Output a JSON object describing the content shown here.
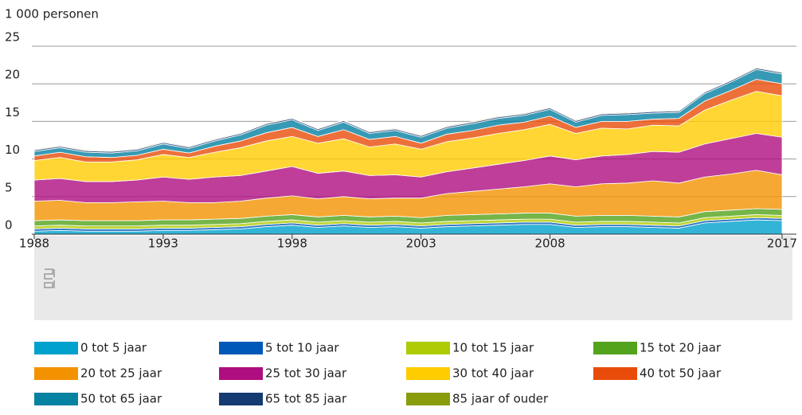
{
  "chart_data": {
    "type": "stacked_area",
    "y_label": "1 000 personen",
    "x": [
      1988,
      1989,
      1990,
      1991,
      1992,
      1993,
      1994,
      1995,
      1996,
      1997,
      1998,
      1999,
      2000,
      2001,
      2002,
      2003,
      2004,
      2005,
      2006,
      2007,
      2008,
      2009,
      2010,
      2011,
      2012,
      2013,
      2014,
      2015,
      2016,
      2017
    ],
    "xlim": [
      1988,
      2017
    ],
    "xticks": [
      1988,
      1993,
      1998,
      2003,
      2008,
      2017
    ],
    "ylim": [
      0,
      25
    ],
    "yticks": [
      0,
      5,
      10,
      15,
      20,
      25
    ],
    "grid": true,
    "series": [
      {
        "name": "0 tot 5 jaar",
        "color": "#00a1cd",
        "values": [
          0.4,
          0.5,
          0.4,
          0.4,
          0.4,
          0.5,
          0.5,
          0.6,
          0.7,
          1.0,
          1.2,
          0.9,
          1.1,
          0.9,
          1.0,
          0.8,
          1.0,
          1.1,
          1.2,
          1.3,
          1.3,
          0.9,
          1.0,
          1.0,
          0.9,
          0.8,
          1.5,
          1.7,
          1.9,
          1.8
        ]
      },
      {
        "name": "5 tot 10 jaar",
        "color": "#0058b8",
        "values": [
          0.3,
          0.3,
          0.3,
          0.3,
          0.3,
          0.3,
          0.3,
          0.3,
          0.3,
          0.3,
          0.3,
          0.3,
          0.3,
          0.3,
          0.3,
          0.3,
          0.3,
          0.3,
          0.3,
          0.3,
          0.3,
          0.3,
          0.3,
          0.3,
          0.3,
          0.3,
          0.3,
          0.3,
          0.3,
          0.3
        ]
      },
      {
        "name": "10 tot 15 jaar",
        "color": "#afcb05",
        "values": [
          0.4,
          0.4,
          0.4,
          0.4,
          0.4,
          0.4,
          0.4,
          0.4,
          0.4,
          0.4,
          0.4,
          0.4,
          0.4,
          0.4,
          0.4,
          0.4,
          0.4,
          0.4,
          0.4,
          0.4,
          0.4,
          0.4,
          0.4,
          0.4,
          0.4,
          0.4,
          0.4,
          0.4,
          0.4,
          0.4
        ]
      },
      {
        "name": "15 tot 20 jaar",
        "color": "#53a31d",
        "values": [
          0.7,
          0.7,
          0.7,
          0.7,
          0.7,
          0.7,
          0.7,
          0.7,
          0.7,
          0.7,
          0.7,
          0.7,
          0.7,
          0.7,
          0.7,
          0.7,
          0.8,
          0.8,
          0.8,
          0.8,
          0.8,
          0.8,
          0.8,
          0.8,
          0.8,
          0.8,
          0.8,
          0.8,
          0.8,
          0.8
        ]
      },
      {
        "name": "20 tot 25 jaar",
        "color": "#f39200",
        "values": [
          2.6,
          2.6,
          2.4,
          2.4,
          2.5,
          2.5,
          2.3,
          2.2,
          2.3,
          2.4,
          2.5,
          2.4,
          2.5,
          2.4,
          2.4,
          2.6,
          2.9,
          3.1,
          3.3,
          3.5,
          3.9,
          3.9,
          4.2,
          4.3,
          4.7,
          4.5,
          4.6,
          4.8,
          5.1,
          4.6
        ]
      },
      {
        "name": "25 tot 30 jaar",
        "color": "#af0e80",
        "values": [
          2.8,
          2.9,
          2.8,
          2.8,
          2.9,
          3.2,
          3.1,
          3.4,
          3.4,
          3.6,
          3.9,
          3.4,
          3.4,
          3.1,
          3.1,
          2.8,
          2.9,
          3.1,
          3.3,
          3.5,
          3.7,
          3.6,
          3.7,
          3.8,
          3.9,
          4.1,
          4.4,
          4.7,
          4.9,
          5.0
        ]
      },
      {
        "name": "30 tot 40 jaar",
        "color": "#ffcc00",
        "values": [
          2.6,
          2.8,
          2.6,
          2.6,
          2.7,
          3.0,
          2.9,
          3.3,
          3.7,
          4.0,
          4.0,
          4.0,
          4.3,
          3.8,
          4.1,
          3.7,
          4.0,
          4.0,
          4.1,
          4.1,
          4.2,
          3.5,
          3.7,
          3.4,
          3.5,
          3.5,
          4.5,
          5.1,
          5.6,
          5.5
        ]
      },
      {
        "name": "40 tot 50 jaar",
        "color": "#e94c0a",
        "values": [
          0.6,
          0.7,
          0.7,
          0.6,
          0.6,
          0.7,
          0.6,
          0.8,
          0.9,
          1.1,
          1.2,
          0.9,
          1.2,
          1.0,
          1.0,
          0.8,
          1.0,
          1.0,
          1.1,
          1.0,
          1.1,
          0.8,
          0.9,
          1.0,
          0.8,
          1.0,
          1.2,
          1.3,
          1.6,
          1.6
        ]
      },
      {
        "name": "50 tot 65 jaar",
        "color": "#0581a2",
        "values": [
          0.6,
          0.6,
          0.6,
          0.6,
          0.6,
          0.7,
          0.6,
          0.7,
          0.8,
          1.0,
          1.0,
          0.8,
          1.0,
          0.8,
          0.8,
          0.8,
          0.8,
          0.9,
          0.9,
          0.9,
          0.9,
          0.7,
          0.8,
          0.9,
          0.8,
          0.8,
          1.0,
          1.1,
          1.3,
          1.3
        ]
      },
      {
        "name": "65 tot 85 jaar",
        "color": "#163a72",
        "values": [
          0.2,
          0.2,
          0.2,
          0.2,
          0.2,
          0.2,
          0.2,
          0.2,
          0.2,
          0.2,
          0.2,
          0.2,
          0.2,
          0.2,
          0.2,
          0.2,
          0.2,
          0.2,
          0.2,
          0.2,
          0.2,
          0.2,
          0.2,
          0.2,
          0.2,
          0.2,
          0.2,
          0.2,
          0.2,
          0.2
        ]
      },
      {
        "name": "85 jaar of ouder",
        "color": "#899d0c",
        "values": [
          0.1,
          0.1,
          0.1,
          0.1,
          0.1,
          0.1,
          0.1,
          0.1,
          0.1,
          0.1,
          0.1,
          0.1,
          0.1,
          0.1,
          0.1,
          0.1,
          0.1,
          0.1,
          0.1,
          0.1,
          0.1,
          0.1,
          0.1,
          0.1,
          0.1,
          0.1,
          0.1,
          0.1,
          0.1,
          0.1
        ]
      }
    ]
  }
}
